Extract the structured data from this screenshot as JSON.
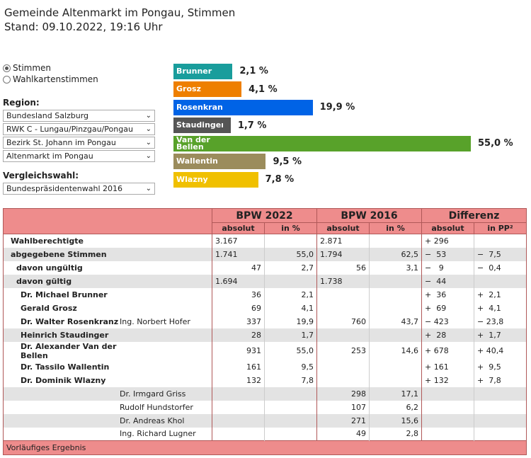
{
  "title": {
    "line1": "Gemeinde Altenmarkt im Pongau, Stimmen",
    "line2": "Stand: 09.10.2022, 19:16 Uhr"
  },
  "controls": {
    "radio1": "Stimmen",
    "radio2": "Wahlkartenstimmen",
    "region_label": "Region:",
    "region_selects": [
      "Bundesland Salzburg",
      "RWK C - Lungau/Pinzgau/Pongau",
      "Bezirk St. Johann im Pongau",
      "Altenmarkt im Pongau"
    ],
    "vergleich_label": "Vergleichswahl:",
    "vergleich_select": "Bundespräsidentenwahl 2016"
  },
  "chart_data": {
    "type": "bar",
    "categories": [
      "Brunner",
      "Grosz",
      "Rosenkranz",
      "Staudinger",
      "Van der Bellen",
      "Wallentin",
      "Wlazny"
    ],
    "values": [
      2.1,
      4.1,
      19.9,
      1.7,
      55.0,
      9.5,
      7.8
    ],
    "value_labels": [
      "2,1 %",
      "4,1 %",
      "19,9 %",
      "1,7 %",
      "55,0 %",
      "9,5 %",
      "7,8 %"
    ],
    "colors": [
      "#199d9c",
      "#ee7f00",
      "#0063e6",
      "#555555",
      "#58a22a",
      "#9b8c5c",
      "#f0c000"
    ]
  },
  "table": {
    "groups": [
      "BPW 2022",
      "BPW 2016",
      "Differenz"
    ],
    "subheaders": [
      "absolut",
      "in %",
      "absolut",
      "in %",
      "absolut",
      "in PP²"
    ],
    "rows": [
      {
        "name": "Wahlberechtigte",
        "sub": "",
        "a22": "3.167",
        "p22": "",
        "a16": "2.871",
        "p16": "",
        "da": "+ 296",
        "dp": ""
      },
      {
        "name": "abgegebene Stimmen",
        "sub": "",
        "a22": "1.741",
        "p22": "55,0",
        "a16": "1.794",
        "p16": "62,5",
        "da": "−  53",
        "dp": "−  7,5"
      },
      {
        "name": "davon ungültig",
        "sub": "",
        "a22": "47",
        "p22": "2,7",
        "a16": "56",
        "p16": "3,1",
        "da": "−   9",
        "dp": "−  0,4"
      },
      {
        "name": "davon gültig",
        "sub": "",
        "a22": "1.694",
        "p22": "",
        "a16": "1.738",
        "p16": "",
        "da": "−  44",
        "dp": ""
      },
      {
        "name": "Dr. Michael Brunner",
        "sub": "",
        "a22": "36",
        "p22": "2,1",
        "a16": "",
        "p16": "",
        "da": "+  36",
        "dp": "+  2,1"
      },
      {
        "name": "Gerald Grosz",
        "sub": "",
        "a22": "69",
        "p22": "4,1",
        "a16": "",
        "p16": "",
        "da": "+  69",
        "dp": "+  4,1"
      },
      {
        "name": "Dr. Walter Rosenkranz",
        "sub": "Ing. Norbert Hofer",
        "a22": "337",
        "p22": "19,9",
        "a16": "760",
        "p16": "43,7",
        "da": "− 423",
        "dp": "− 23,8"
      },
      {
        "name": "Heinrich Staudinger",
        "sub": "",
        "a22": "28",
        "p22": "1,7",
        "a16": "",
        "p16": "",
        "da": "+  28",
        "dp": "+  1,7"
      },
      {
        "name": "Dr. Alexander Van der Bellen",
        "sub": "",
        "a22": "931",
        "p22": "55,0",
        "a16": "253",
        "p16": "14,6",
        "da": "+ 678",
        "dp": "+ 40,4"
      },
      {
        "name": "Dr. Tassilo Wallentin",
        "sub": "",
        "a22": "161",
        "p22": "9,5",
        "a16": "",
        "p16": "",
        "da": "+ 161",
        "dp": "+  9,5"
      },
      {
        "name": "Dr. Dominik Wlazny",
        "sub": "",
        "a22": "132",
        "p22": "7,8",
        "a16": "",
        "p16": "",
        "da": "+ 132",
        "dp": "+  7,8"
      },
      {
        "name": "",
        "sub": "Dr. Irmgard Griss",
        "a22": "",
        "p22": "",
        "a16": "298",
        "p16": "17,1",
        "da": "",
        "dp": ""
      },
      {
        "name": "",
        "sub": "Rudolf Hundstorfer",
        "a22": "",
        "p22": "",
        "a16": "107",
        "p16": "6,2",
        "da": "",
        "dp": ""
      },
      {
        "name": "",
        "sub": "Dr. Andreas Khol",
        "a22": "",
        "p22": "",
        "a16": "271",
        "p16": "15,6",
        "da": "",
        "dp": ""
      },
      {
        "name": "",
        "sub": "Ing. Richard Lugner",
        "a22": "",
        "p22": "",
        "a16": "49",
        "p16": "2,8",
        "da": "",
        "dp": ""
      }
    ],
    "footer": "Vorläufiges Ergebnis"
  }
}
